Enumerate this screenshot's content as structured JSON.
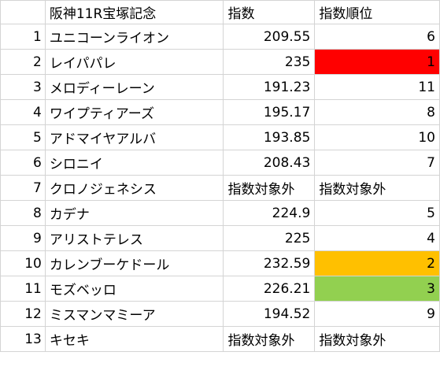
{
  "header": {
    "index": "",
    "race": "阪神11R宝塚記念",
    "score": "指数",
    "rank": "指数順位"
  },
  "rows": [
    {
      "idx": "1",
      "name": "ユニコーンライオン",
      "score": "209.55",
      "rank": "6",
      "score_align": "right",
      "rank_align": "right",
      "rank_bg": ""
    },
    {
      "idx": "2",
      "name": "レイパパレ",
      "score": "235",
      "rank": "1",
      "score_align": "right",
      "rank_align": "right",
      "rank_bg": "#ff0000"
    },
    {
      "idx": "3",
      "name": "メロディーレーン",
      "score": "191.23",
      "rank": "11",
      "score_align": "right",
      "rank_align": "right",
      "rank_bg": ""
    },
    {
      "idx": "4",
      "name": "ワイプティアーズ",
      "score": "195.17",
      "rank": "8",
      "score_align": "right",
      "rank_align": "right",
      "rank_bg": ""
    },
    {
      "idx": "5",
      "name": "アドマイヤアルバ",
      "score": "193.85",
      "rank": "10",
      "score_align": "right",
      "rank_align": "right",
      "rank_bg": ""
    },
    {
      "idx": "6",
      "name": "シロニイ",
      "score": "208.43",
      "rank": "7",
      "score_align": "right",
      "rank_align": "right",
      "rank_bg": ""
    },
    {
      "idx": "7",
      "name": "クロノジェネシス",
      "score": "指数対象外",
      "rank": "指数対象外",
      "score_align": "left",
      "rank_align": "left",
      "rank_bg": ""
    },
    {
      "idx": "8",
      "name": "カデナ",
      "score": "224.9",
      "rank": "5",
      "score_align": "right",
      "rank_align": "right",
      "rank_bg": ""
    },
    {
      "idx": "9",
      "name": "アリストテレス",
      "score": "225",
      "rank": "4",
      "score_align": "right",
      "rank_align": "right",
      "rank_bg": ""
    },
    {
      "idx": "10",
      "name": "カレンブーケドール",
      "score": "232.59",
      "rank": "2",
      "score_align": "right",
      "rank_align": "right",
      "rank_bg": "#ffc000"
    },
    {
      "idx": "11",
      "name": "モズベッロ",
      "score": "226.21",
      "rank": "3",
      "score_align": "right",
      "rank_align": "right",
      "rank_bg": "#92d050"
    },
    {
      "idx": "12",
      "name": "ミスマンマミーア",
      "score": "194.52",
      "rank": "9",
      "score_align": "right",
      "rank_align": "right",
      "rank_bg": ""
    },
    {
      "idx": "13",
      "name": "キセキ",
      "score": "指数対象外",
      "rank": "指数対象外",
      "score_align": "left",
      "rank_align": "left",
      "rank_bg": ""
    }
  ]
}
